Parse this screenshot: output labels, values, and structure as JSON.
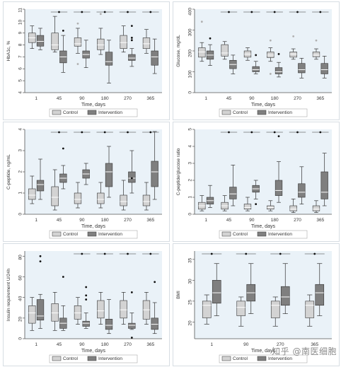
{
  "watermark": "知乎 @南医细胞",
  "style": {
    "panel_bg": "#eaf2f8",
    "control_fill": "#d3d3d3",
    "intervention_fill": "#7f7f7f",
    "line_color": "#333333",
    "outlier_color": "#111111"
  },
  "chart_data": [
    {
      "id": "hba1c",
      "type": "box",
      "ylabel": "HbA1c, %",
      "xlabel": "Time, days",
      "categories": [
        "1",
        "45",
        "90",
        "180",
        "270",
        "365"
      ],
      "ylim": [
        4,
        11
      ],
      "yticks": [
        "4",
        "5",
        "6",
        "7",
        "8",
        "9",
        "10",
        "11"
      ],
      "significance": [
        false,
        true,
        true,
        true,
        true,
        true
      ],
      "legend": [
        "Control",
        "Intervention"
      ],
      "series": [
        {
          "name": "Control",
          "boxes": [
            {
              "min": 7.7,
              "q1": 8.2,
              "median": 8.6,
              "q3": 9.0,
              "max": 9.6,
              "outliers": []
            },
            {
              "min": 7.4,
              "q1": 7.6,
              "median": 8.0,
              "q3": 9.0,
              "max": 10.4,
              "outliers": []
            },
            {
              "min": 7.3,
              "q1": 7.9,
              "median": 8.1,
              "q3": 8.6,
              "max": 9.4,
              "outliers": [
                6.4,
                9.8
              ]
            },
            {
              "min": 7.2,
              "q1": 7.6,
              "median": 8.0,
              "q3": 8.5,
              "max": 9.4,
              "outliers": [
                10.6
              ]
            },
            {
              "min": 7.4,
              "q1": 7.7,
              "median": 8.2,
              "q3": 8.8,
              "max": 9.6,
              "outliers": []
            },
            {
              "min": 7.3,
              "q1": 7.7,
              "median": 8.1,
              "q3": 8.6,
              "max": 9.3,
              "outliers": []
            }
          ]
        },
        {
          "name": "Intervention",
          "boxes": [
            {
              "min": 7.6,
              "q1": 7.9,
              "median": 8.3,
              "q3": 8.8,
              "max": 9.4,
              "outliers": []
            },
            {
              "min": 5.7,
              "q1": 6.5,
              "median": 7.0,
              "q3": 7.5,
              "max": 8.8,
              "outliers": [
                9.2
              ]
            },
            {
              "min": 6.1,
              "q1": 6.9,
              "median": 7.2,
              "q3": 7.5,
              "max": 8.4,
              "outliers": []
            },
            {
              "min": 4.8,
              "q1": 6.3,
              "median": 6.6,
              "q3": 7.4,
              "max": 8.4,
              "outliers": []
            },
            {
              "min": 6.2,
              "q1": 6.7,
              "median": 6.9,
              "q3": 7.2,
              "max": 7.7,
              "outliers": [
                8.4,
                8.6,
                9.6
              ]
            },
            {
              "min": 5.6,
              "q1": 6.3,
              "median": 7.0,
              "q3": 7.5,
              "max": 8.5,
              "outliers": []
            }
          ]
        }
      ]
    },
    {
      "id": "glucose",
      "type": "box",
      "ylabel": "Glucose, mg/dL",
      "xlabel": "Time, days",
      "categories": [
        "1",
        "45",
        "90",
        "180",
        "270",
        "365"
      ],
      "ylim": [
        0,
        400
      ],
      "yticks": [
        "0",
        "100",
        "200",
        "300",
        "400"
      ],
      "significance": [
        false,
        true,
        true,
        true,
        true,
        true
      ],
      "legend": [
        "Control",
        "Intervention"
      ],
      "series": [
        {
          "name": "Control",
          "boxes": [
            {
              "min": 150,
              "q1": 170,
              "median": 195,
              "q3": 215,
              "max": 240,
              "outliers": [
                340
              ]
            },
            {
              "min": 160,
              "q1": 175,
              "median": 190,
              "q3": 230,
              "max": 245,
              "outliers": []
            },
            {
              "min": 155,
              "q1": 170,
              "median": 185,
              "q3": 200,
              "max": 215,
              "outliers": []
            },
            {
              "min": 150,
              "q1": 168,
              "median": 180,
              "q3": 195,
              "max": 215,
              "outliers": [
                90,
                250
              ]
            },
            {
              "min": 160,
              "q1": 170,
              "median": 185,
              "q3": 195,
              "max": 210,
              "outliers": [
                270
              ]
            },
            {
              "min": 160,
              "q1": 172,
              "median": 180,
              "q3": 195,
              "max": 210,
              "outliers": [
                250
              ]
            }
          ]
        },
        {
          "name": "Intervention",
          "boxes": [
            {
              "min": 130,
              "q1": 160,
              "median": 180,
              "q3": 200,
              "max": 230,
              "outliers": [
                260
              ]
            },
            {
              "min": 90,
              "q1": 115,
              "median": 135,
              "q3": 155,
              "max": 180,
              "outliers": []
            },
            {
              "min": 90,
              "q1": 100,
              "median": 110,
              "q3": 125,
              "max": 150,
              "outliers": [
                180
              ]
            },
            {
              "min": 75,
              "q1": 90,
              "median": 100,
              "q3": 120,
              "max": 145,
              "outliers": [
                185
              ]
            },
            {
              "min": 70,
              "q1": 95,
              "median": 110,
              "q3": 140,
              "max": 165,
              "outliers": []
            },
            {
              "min": 70,
              "q1": 90,
              "median": 110,
              "q3": 140,
              "max": 175,
              "outliers": []
            }
          ]
        }
      ]
    },
    {
      "id": "cpeptide",
      "type": "box",
      "ylabel": "C-peptide, ng/mL",
      "xlabel": "Time, days",
      "categories": [
        "1",
        "45",
        "90",
        "180",
        "270",
        "365"
      ],
      "ylim": [
        0,
        4
      ],
      "yticks": [
        "0",
        "1",
        "2",
        "3",
        "4"
      ],
      "significance": [
        false,
        true,
        true,
        true,
        true,
        true
      ],
      "legend": [
        "Control",
        "Intervention"
      ],
      "series": [
        {
          "name": "Control",
          "boxes": [
            {
              "min": 0.5,
              "q1": 0.7,
              "median": 0.9,
              "q3": 1.2,
              "max": 1.8,
              "outliers": []
            },
            {
              "min": 0.2,
              "q1": 0.4,
              "median": 0.8,
              "q3": 1.3,
              "max": 2.1,
              "outliers": []
            },
            {
              "min": 0.3,
              "q1": 0.5,
              "median": 0.7,
              "q3": 1.0,
              "max": 1.5,
              "outliers": []
            },
            {
              "min": 0.3,
              "q1": 0.5,
              "median": 0.7,
              "q3": 1.0,
              "max": 1.5,
              "outliers": []
            },
            {
              "min": 0.2,
              "q1": 0.4,
              "median": 0.6,
              "q3": 0.9,
              "max": 1.6,
              "outliers": []
            },
            {
              "min": 0.2,
              "q1": 0.4,
              "median": 0.6,
              "q3": 0.9,
              "max": 1.5,
              "outliers": []
            }
          ]
        },
        {
          "name": "Intervention",
          "boxes": [
            {
              "min": 0.7,
              "q1": 1.1,
              "median": 1.4,
              "q3": 1.6,
              "max": 2.6,
              "outliers": []
            },
            {
              "min": 1.2,
              "q1": 1.5,
              "median": 1.7,
              "q3": 1.9,
              "max": 2.3,
              "outliers": [
                3.1
              ]
            },
            {
              "min": 1.4,
              "q1": 1.7,
              "median": 1.9,
              "q3": 2.1,
              "max": 2.4,
              "outliers": []
            },
            {
              "min": 0.8,
              "q1": 1.3,
              "median": 2.0,
              "q3": 2.4,
              "max": 3.2,
              "outliers": []
            },
            {
              "min": 1.0,
              "q1": 1.5,
              "median": 1.7,
              "q3": 2.0,
              "max": 3.0,
              "outliers": [
                1.7
              ]
            },
            {
              "min": 0.7,
              "q1": 1.3,
              "median": 2.0,
              "q3": 2.5,
              "max": 3.9,
              "outliers": []
            }
          ]
        }
      ]
    },
    {
      "id": "cpep_glucose_ratio",
      "type": "box",
      "ylabel": "C-peptide/glucose ratio",
      "xlabel": "Time, days",
      "categories": [
        "1",
        "45",
        "90",
        "180",
        "270",
        "365"
      ],
      "ylim": [
        0,
        5
      ],
      "yticks": [
        "0",
        "1",
        "2",
        "3",
        "4",
        "5"
      ],
      "significance": [
        false,
        true,
        true,
        true,
        true,
        true
      ],
      "legend": [
        "Control",
        "Intervention"
      ],
      "series": [
        {
          "name": "Control",
          "boxes": [
            {
              "min": 0.2,
              "q1": 0.3,
              "median": 0.5,
              "q3": 0.7,
              "max": 1.1,
              "outliers": []
            },
            {
              "min": 0.2,
              "q1": 0.3,
              "median": 0.5,
              "q3": 0.7,
              "max": 1.1,
              "outliers": []
            },
            {
              "min": 0.2,
              "q1": 0.3,
              "median": 0.4,
              "q3": 0.6,
              "max": 1.0,
              "outliers": []
            },
            {
              "min": 0.2,
              "q1": 0.3,
              "median": 0.4,
              "q3": 0.5,
              "max": 0.8,
              "outliers": []
            },
            {
              "min": 0.1,
              "q1": 0.2,
              "median": 0.3,
              "q3": 0.5,
              "max": 0.9,
              "outliers": []
            },
            {
              "min": 0.1,
              "q1": 0.2,
              "median": 0.3,
              "q3": 0.5,
              "max": 0.8,
              "outliers": []
            }
          ]
        },
        {
          "name": "Intervention",
          "boxes": [
            {
              "min": 0.4,
              "q1": 0.6,
              "median": 0.8,
              "q3": 1.0,
              "max": 1.7,
              "outliers": []
            },
            {
              "min": 0.5,
              "q1": 0.9,
              "median": 1.2,
              "q3": 1.6,
              "max": 2.9,
              "outliers": []
            },
            {
              "min": 0.9,
              "q1": 1.3,
              "median": 1.5,
              "q3": 1.7,
              "max": 2.0,
              "outliers": [
                0.6
              ]
            },
            {
              "min": 0.7,
              "q1": 1.1,
              "median": 1.4,
              "q3": 2.0,
              "max": 3.1,
              "outliers": [
                4.6
              ]
            },
            {
              "min": 0.6,
              "q1": 1.0,
              "median": 1.3,
              "q3": 1.8,
              "max": 2.8,
              "outliers": []
            },
            {
              "min": 0.5,
              "q1": 0.9,
              "median": 1.3,
              "q3": 2.5,
              "max": 3.6,
              "outliers": []
            }
          ]
        }
      ]
    },
    {
      "id": "insulin",
      "type": "box",
      "ylabel": "Insulin requirement U/24h",
      "xlabel": "Time, days",
      "categories": [
        "1",
        "45",
        "90",
        "180",
        "270",
        "365"
      ],
      "ylim": [
        0,
        85
      ],
      "yticks": [
        "0",
        "20",
        "40",
        "60",
        "80"
      ],
      "significance": [
        false,
        false,
        true,
        true,
        true,
        true
      ],
      "legend": [
        "Control",
        "Intervention"
      ],
      "series": [
        {
          "name": "Control",
          "boxes": [
            {
              "min": 8,
              "q1": 15,
              "median": 25,
              "q3": 32,
              "max": 40,
              "outliers": []
            },
            {
              "min": 8,
              "q1": 17,
              "median": 25,
              "q3": 34,
              "max": 45,
              "outliers": []
            },
            {
              "min": 14,
              "q1": 19,
              "median": 25,
              "q3": 32,
              "max": 40,
              "outliers": []
            },
            {
              "min": 14,
              "q1": 20,
              "median": 27,
              "q3": 37,
              "max": 45,
              "outliers": []
            },
            {
              "min": 14,
              "q1": 20,
              "median": 28,
              "q3": 37,
              "max": 45,
              "outliers": []
            },
            {
              "min": 14,
              "q1": 19,
              "median": 28,
              "q3": 37,
              "max": 45,
              "outliers": []
            }
          ]
        },
        {
          "name": "Intervention",
          "boxes": [
            {
              "min": 10,
              "q1": 18,
              "median": 22,
              "q3": 38,
              "max": 43,
              "outliers": [
                75,
                80
              ]
            },
            {
              "min": 8,
              "q1": 10,
              "median": 15,
              "q3": 20,
              "max": 32,
              "outliers": [
                60
              ]
            },
            {
              "min": 10,
              "q1": 12,
              "median": 15,
              "q3": 17,
              "max": 25,
              "outliers": [
                38,
                42,
                50
              ]
            },
            {
              "min": 5,
              "q1": 9,
              "median": 13,
              "q3": 19,
              "max": 38,
              "outliers": []
            },
            {
              "min": 9,
              "q1": 10,
              "median": 13,
              "q3": 15,
              "max": 25,
              "outliers": [
                45,
                1
              ]
            },
            {
              "min": 5,
              "q1": 9,
              "median": 14,
              "q3": 20,
              "max": 35,
              "outliers": [
                55
              ]
            }
          ]
        }
      ]
    },
    {
      "id": "bmi",
      "type": "box",
      "ylabel": "BMI",
      "xlabel": "Time, days",
      "categories": [
        "1",
        "90",
        "270",
        "365"
      ],
      "ylim": [
        16,
        37
      ],
      "yticks": [
        "20",
        "25",
        "30",
        "35"
      ],
      "significance": [
        true,
        true,
        true,
        true
      ],
      "legend": [
        "Control",
        "Intervention"
      ],
      "series": [
        {
          "name": "Control",
          "boxes": [
            {
              "min": 19.5,
              "q1": 21.0,
              "median": 24.0,
              "q3": 25.0,
              "max": 26.5,
              "outliers": []
            },
            {
              "min": 19.0,
              "q1": 21.5,
              "median": 23.5,
              "q3": 25.0,
              "max": 26.0,
              "outliers": []
            },
            {
              "min": 19.0,
              "q1": 21.0,
              "median": 24.0,
              "q3": 25.0,
              "max": 26.0,
              "outliers": []
            },
            {
              "min": 19.0,
              "q1": 21.0,
              "median": 24.0,
              "q3": 25.0,
              "max": 26.5,
              "outliers": []
            }
          ]
        },
        {
          "name": "Intervention",
          "boxes": [
            {
              "min": 21.5,
              "q1": 24.5,
              "median": 27.0,
              "q3": 30.0,
              "max": 34.0,
              "outliers": []
            },
            {
              "min": 22.0,
              "q1": 25.0,
              "median": 27.0,
              "q3": 29.0,
              "max": 34.0,
              "outliers": []
            },
            {
              "min": 22.0,
              "q1": 24.0,
              "median": 26.0,
              "q3": 28.5,
              "max": 34.0,
              "outliers": []
            },
            {
              "min": 21.5,
              "q1": 24.0,
              "median": 27.0,
              "q3": 29.0,
              "max": 34.0,
              "outliers": []
            }
          ]
        }
      ]
    }
  ]
}
